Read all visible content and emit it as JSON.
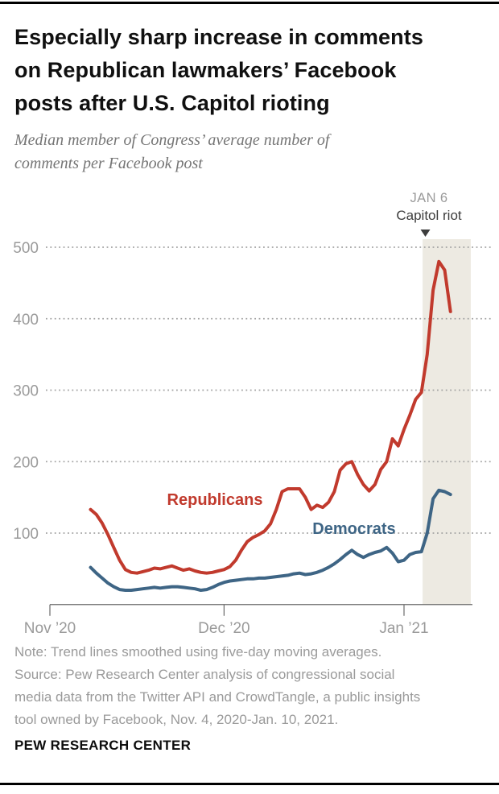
{
  "header": {
    "title_lines": [
      "Especially sharp increase in comments",
      "on Republican lawmakers’ Facebook",
      "posts after U.S. Capitol rioting"
    ],
    "subtitle_lines": [
      "Median member of Congress’ average number of",
      "comments per Facebook post"
    ]
  },
  "chart_data": {
    "type": "line",
    "x_unit": "days since Nov 1, 2020 (trend lines smoothed, five-day moving averages)",
    "x_ticks": [
      {
        "label": "Nov ’20",
        "day": 0
      },
      {
        "label": "Dec ’20",
        "day": 30
      },
      {
        "label": "Jan ’21",
        "day": 61
      }
    ],
    "y_ticks": [
      100,
      200,
      300,
      400,
      500
    ],
    "ylim": [
      0,
      520
    ],
    "grid": "dotted horizontal gridlines",
    "legend_position": "inline labels beside lines",
    "highlight": {
      "label_line1": "JAN 6",
      "label_line2": "Capitol riot",
      "marker_day": 65.3,
      "region_start_day": 64.2,
      "region_end_day": 72.5
    },
    "series": [
      {
        "name": "Republicans",
        "points": [
          [
            7,
            133
          ],
          [
            8,
            126
          ],
          [
            9,
            114
          ],
          [
            10,
            98
          ],
          [
            11,
            80
          ],
          [
            12,
            62
          ],
          [
            13,
            49
          ],
          [
            14,
            45
          ],
          [
            15,
            44
          ],
          [
            16,
            46
          ],
          [
            17,
            48
          ],
          [
            18,
            51
          ],
          [
            19,
            50
          ],
          [
            20,
            52
          ],
          [
            21,
            54
          ],
          [
            22,
            51
          ],
          [
            23,
            48
          ],
          [
            24,
            50
          ],
          [
            25,
            47
          ],
          [
            26,
            45
          ],
          [
            27,
            44
          ],
          [
            28,
            45
          ],
          [
            29,
            47
          ],
          [
            30,
            49
          ],
          [
            31,
            53
          ],
          [
            32,
            62
          ],
          [
            33,
            76
          ],
          [
            34,
            88
          ],
          [
            35,
            94
          ],
          [
            36,
            98
          ],
          [
            37,
            103
          ],
          [
            38,
            113
          ],
          [
            39,
            133
          ],
          [
            40,
            158
          ],
          [
            41,
            162
          ],
          [
            42,
            162
          ],
          [
            43,
            162
          ],
          [
            44,
            150
          ],
          [
            45,
            133
          ],
          [
            46,
            139
          ],
          [
            47,
            136
          ],
          [
            48,
            143
          ],
          [
            49,
            158
          ],
          [
            50,
            188
          ],
          [
            51,
            197
          ],
          [
            52,
            200
          ],
          [
            53,
            182
          ],
          [
            54,
            168
          ],
          [
            55,
            159
          ],
          [
            56,
            168
          ],
          [
            57,
            189
          ],
          [
            58,
            200
          ],
          [
            59,
            232
          ],
          [
            60,
            222
          ],
          [
            61,
            245
          ],
          [
            62,
            265
          ],
          [
            63,
            287
          ],
          [
            64,
            297
          ],
          [
            65,
            350
          ],
          [
            66,
            440
          ],
          [
            67,
            480
          ],
          [
            68,
            468
          ],
          [
            69,
            410
          ]
        ]
      },
      {
        "name": "Democrats",
        "points": [
          [
            7,
            52
          ],
          [
            8,
            44
          ],
          [
            9,
            37
          ],
          [
            10,
            30
          ],
          [
            11,
            25
          ],
          [
            12,
            21
          ],
          [
            13,
            20
          ],
          [
            14,
            20
          ],
          [
            15,
            21
          ],
          [
            16,
            22
          ],
          [
            17,
            23
          ],
          [
            18,
            24
          ],
          [
            19,
            23
          ],
          [
            20,
            24
          ],
          [
            21,
            25
          ],
          [
            22,
            25
          ],
          [
            23,
            24
          ],
          [
            24,
            23
          ],
          [
            25,
            22
          ],
          [
            26,
            20
          ],
          [
            27,
            21
          ],
          [
            28,
            24
          ],
          [
            29,
            28
          ],
          [
            30,
            31
          ],
          [
            31,
            33
          ],
          [
            32,
            34
          ],
          [
            33,
            35
          ],
          [
            34,
            36
          ],
          [
            35,
            36
          ],
          [
            36,
            37
          ],
          [
            37,
            37
          ],
          [
            38,
            38
          ],
          [
            39,
            39
          ],
          [
            40,
            40
          ],
          [
            41,
            41
          ],
          [
            42,
            43
          ],
          [
            43,
            44
          ],
          [
            44,
            42
          ],
          [
            45,
            43
          ],
          [
            46,
            45
          ],
          [
            47,
            48
          ],
          [
            48,
            52
          ],
          [
            49,
            57
          ],
          [
            50,
            63
          ],
          [
            51,
            70
          ],
          [
            52,
            76
          ],
          [
            53,
            70
          ],
          [
            54,
            66
          ],
          [
            55,
            70
          ],
          [
            56,
            73
          ],
          [
            57,
            75
          ],
          [
            58,
            80
          ],
          [
            59,
            72
          ],
          [
            60,
            60
          ],
          [
            61,
            62
          ],
          [
            62,
            70
          ],
          [
            63,
            73
          ],
          [
            64,
            74
          ],
          [
            65,
            100
          ],
          [
            66,
            148
          ],
          [
            67,
            160
          ],
          [
            68,
            158
          ],
          [
            69,
            154
          ]
        ]
      }
    ]
  },
  "colors": {
    "republican": "#c13a2d",
    "democrat": "#3e6585",
    "highlight_region": "#edeae2",
    "gridline": "#a3a3a3",
    "axis": "#6b6b6b",
    "axis_label": "#9a9a9a",
    "annotation_secondary": "#9a9a9a",
    "annotation_primary": "#3d3d3d",
    "rule": "#000000"
  },
  "footer": {
    "note_lines": [
      "Note: Trend lines smoothed using five-day moving averages.",
      "Source: Pew Research Center analysis of congressional social",
      "media data from the Twitter API and CrowdTangle, a public insights",
      "tool owned by Facebook, Nov. 4, 2020-Jan. 10, 2021."
    ],
    "brand": "PEW RESEARCH CENTER"
  }
}
